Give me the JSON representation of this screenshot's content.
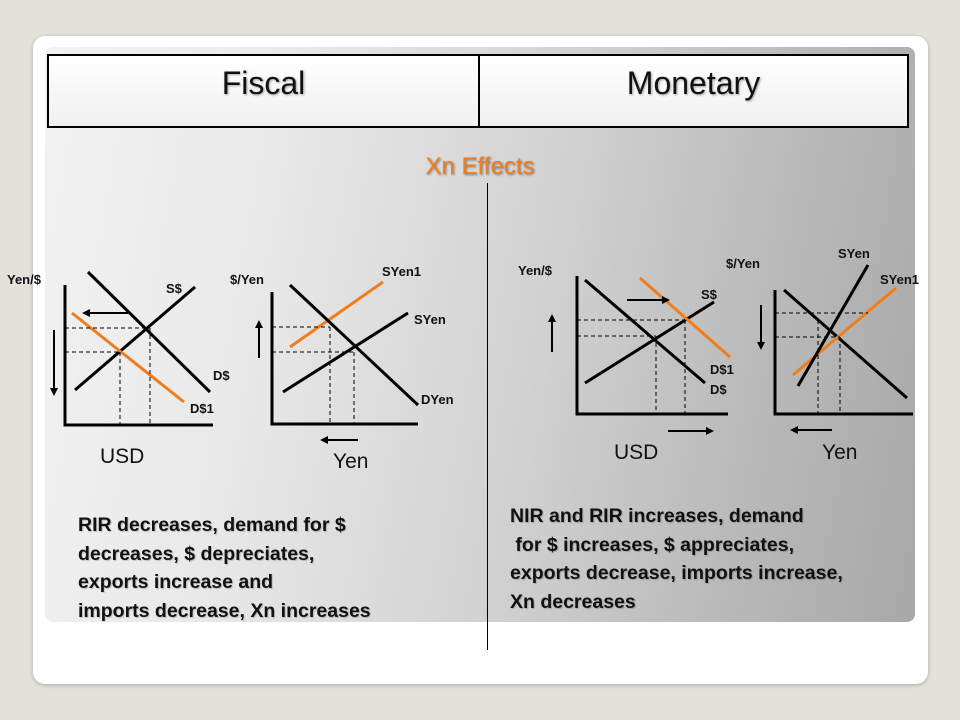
{
  "columns": {
    "fiscal": "Fiscal",
    "monetary": "Monetary"
  },
  "title": "Xn Effects",
  "fiscal_graphs": {
    "usd": {
      "y_label": "Yen/$",
      "supply": "S$",
      "demand": "D$",
      "demand_new": "D$1",
      "x_label": "USD"
    },
    "yen": {
      "y_label": "$/Yen",
      "supply_new": "SYen1",
      "supply": "SYen",
      "demand": "DYen",
      "x_label": "Yen"
    }
  },
  "monetary_graphs": {
    "usd": {
      "y_label": "Yen/$",
      "supply": "S$",
      "demand_new": "D$1",
      "demand": "D$",
      "x_label": "USD"
    },
    "yen": {
      "y_label": "$/Yen",
      "supply": "SYen",
      "supply_new": "SYen1",
      "x_label": "Yen"
    }
  },
  "fiscal_text": [
    "RIR decreases, demand for $",
    "decreases, $ depreciates,",
    "exports increase and",
    "imports decrease, Xn increases"
  ],
  "monetary_text": [
    "NIR and RIR increases, demand",
    " for $ increases, $ appreciates,",
    "exports decrease, imports increase,",
    "Xn decreases"
  ],
  "colors": {
    "accent": "#f07d1a",
    "line": "#000000"
  }
}
